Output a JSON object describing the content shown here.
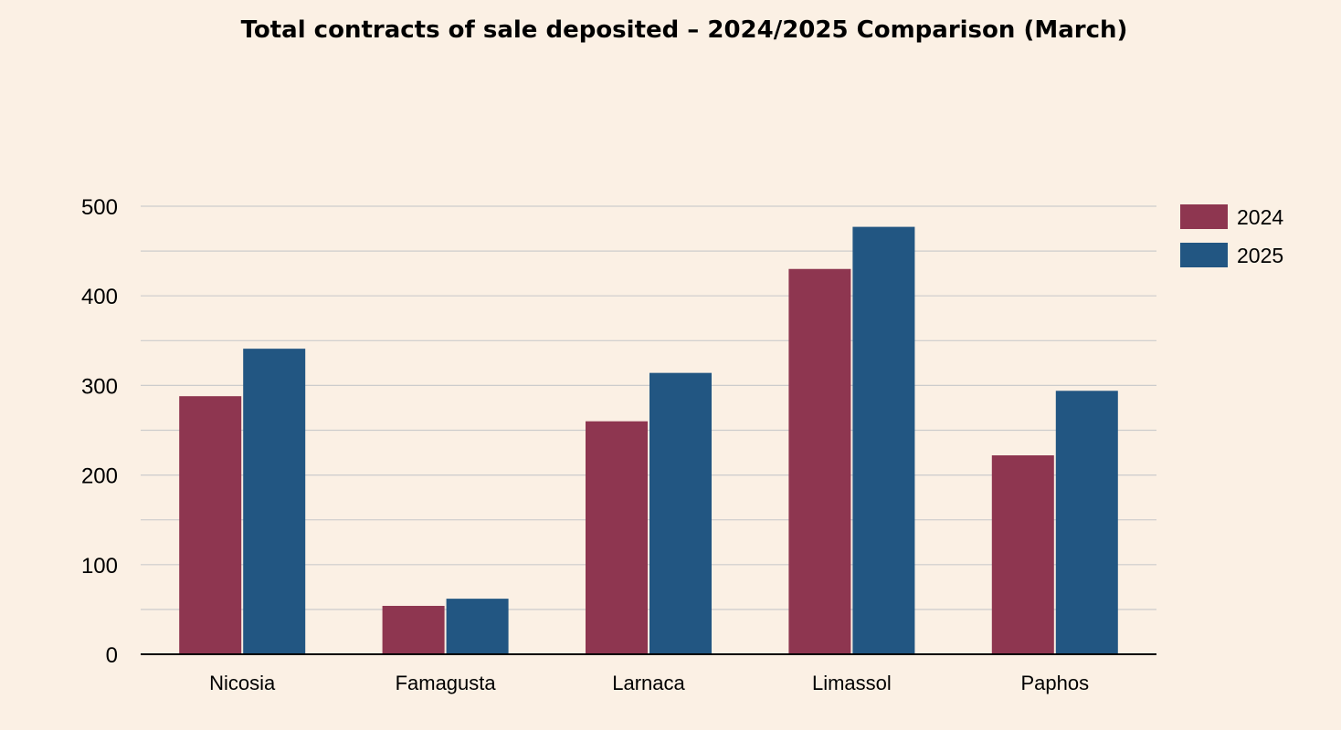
{
  "chart_data": {
    "type": "bar",
    "title": "Total contracts of sale deposited – 2024/2025 Comparison (March)",
    "categories": [
      "Nicosia",
      "Famagusta",
      "Larnaca",
      "Limassol",
      "Paphos"
    ],
    "series": [
      {
        "name": "2024",
        "color": "#8e3650",
        "values": [
          288,
          54,
          260,
          430,
          222
        ]
      },
      {
        "name": "2025",
        "color": "#225682",
        "values": [
          341,
          62,
          314,
          477,
          294
        ]
      }
    ],
    "xlabel": "",
    "ylabel": "",
    "ylim": [
      0,
      500
    ],
    "yticks": [
      "0",
      "100",
      "200",
      "300",
      "400",
      "500"
    ],
    "grid": true,
    "legend_position": "right"
  }
}
